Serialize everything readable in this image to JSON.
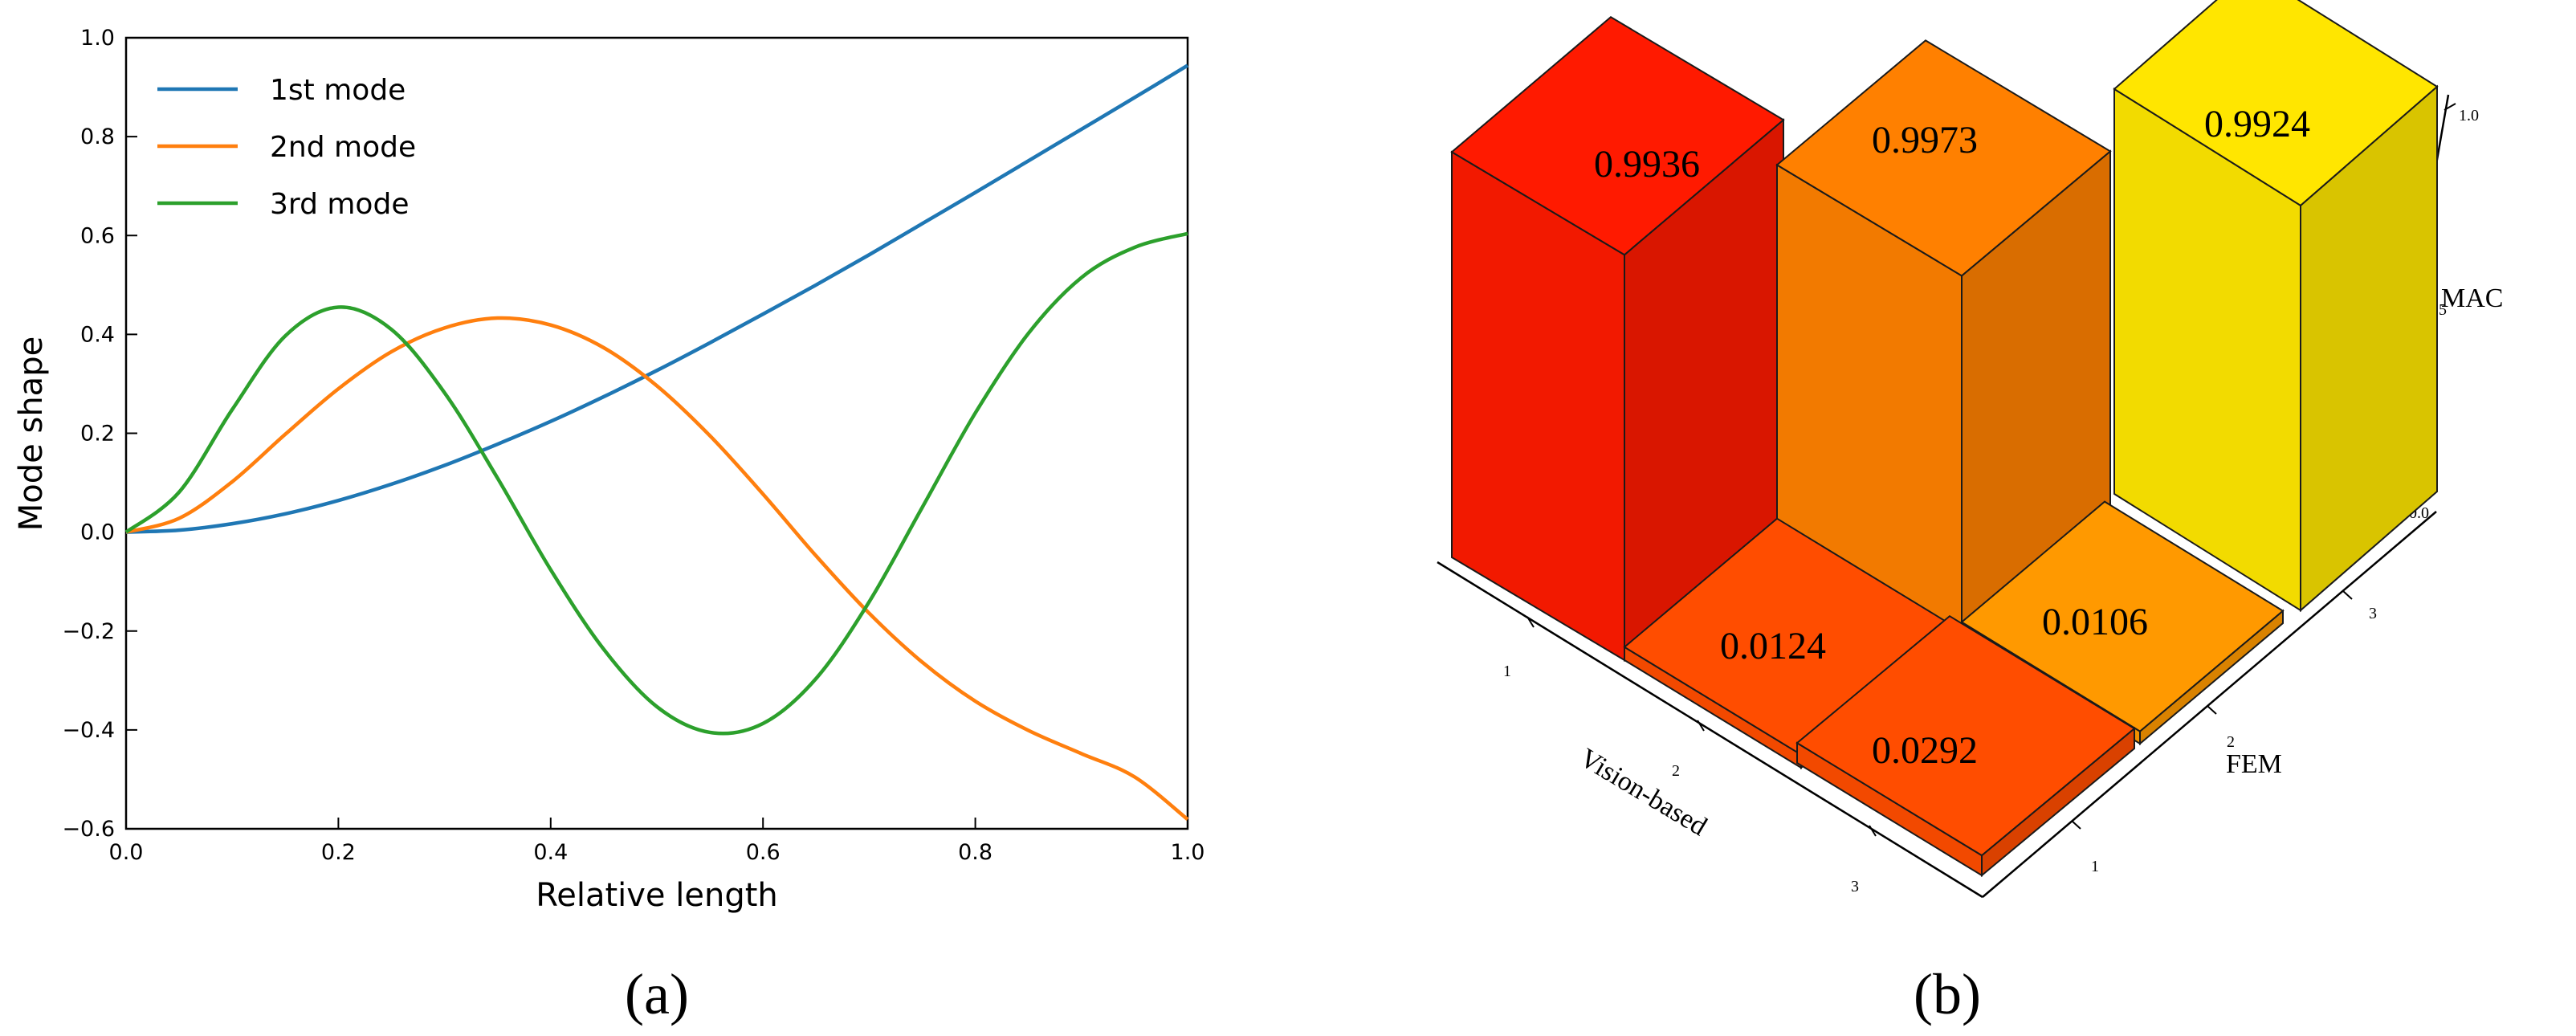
{
  "chart_data": [
    {
      "panel": "(a)",
      "type": "line",
      "xlabel": "Relative length",
      "ylabel": "Mode shape",
      "xlim": [
        0.0,
        1.0
      ],
      "ylim": [
        -0.6,
        1.0
      ],
      "xticks": [
        "0.0",
        "0.2",
        "0.4",
        "0.6",
        "0.8",
        "1.0"
      ],
      "yticks": [
        "1.0",
        "0.8",
        "0.6",
        "0.4",
        "0.2",
        "0.0",
        "−0.2",
        "−0.4",
        "−0.6"
      ],
      "legend_position": "top-left",
      "grid": false,
      "x": [
        0.0,
        0.05,
        0.1,
        0.15,
        0.2,
        0.25,
        0.3,
        0.35,
        0.4,
        0.45,
        0.5,
        0.55,
        0.6,
        0.65,
        0.7,
        0.75,
        0.8,
        0.85,
        0.9,
        0.95,
        1.0
      ],
      "series": [
        {
          "name": "1st mode",
          "color": "#1f77b4",
          "values": [
            0.0,
            0.004,
            0.017,
            0.037,
            0.064,
            0.097,
            0.135,
            0.178,
            0.224,
            0.274,
            0.327,
            0.383,
            0.441,
            0.5,
            0.561,
            0.624,
            0.687,
            0.751,
            0.815,
            0.879,
            0.944
          ]
        },
        {
          "name": "2nd mode",
          "color": "#ff7f0e",
          "values": [
            0.0,
            0.028,
            0.102,
            0.198,
            0.29,
            0.365,
            0.413,
            0.433,
            0.419,
            0.373,
            0.296,
            0.195,
            0.077,
            -0.048,
            -0.164,
            -0.263,
            -0.342,
            -0.401,
            -0.448,
            -0.495,
            -0.581
          ]
        },
        {
          "name": "3rd mode",
          "color": "#2ca02c",
          "values": [
            0.0,
            0.081,
            0.248,
            0.397,
            0.455,
            0.41,
            0.282,
            0.109,
            -0.076,
            -0.237,
            -0.353,
            -0.405,
            -0.387,
            -0.296,
            -0.141,
            0.05,
            0.241,
            0.402,
            0.515,
            0.576,
            0.604
          ]
        }
      ]
    },
    {
      "panel": "(b)",
      "type": "bar3d",
      "zlabel": "MAC",
      "xlabel": "Vision-based",
      "ylabel": "FEM",
      "zticks": [
        "0.0",
        "0.5",
        "1.0"
      ],
      "zlim": [
        0.0,
        1.0
      ],
      "vision_ticks": [
        "1",
        "2",
        "3"
      ],
      "fem_ticks": [
        "1",
        "2",
        "3"
      ],
      "bars": [
        {
          "label": "0.9936",
          "value": 0.9936,
          "color": "#ff1a00"
        },
        {
          "label": "0.9973",
          "value": 0.9973,
          "color": "#ff8000"
        },
        {
          "label": "0.9924",
          "value": 0.9924,
          "color": "#ffe600"
        },
        {
          "label": "0.0124",
          "value": 0.0124,
          "color": "#ff4d00"
        },
        {
          "label": "0.0106",
          "value": 0.0106,
          "color": "#ff9900"
        },
        {
          "label": "0.0292",
          "value": 0.0292,
          "color": "#ff4d00"
        }
      ]
    }
  ]
}
